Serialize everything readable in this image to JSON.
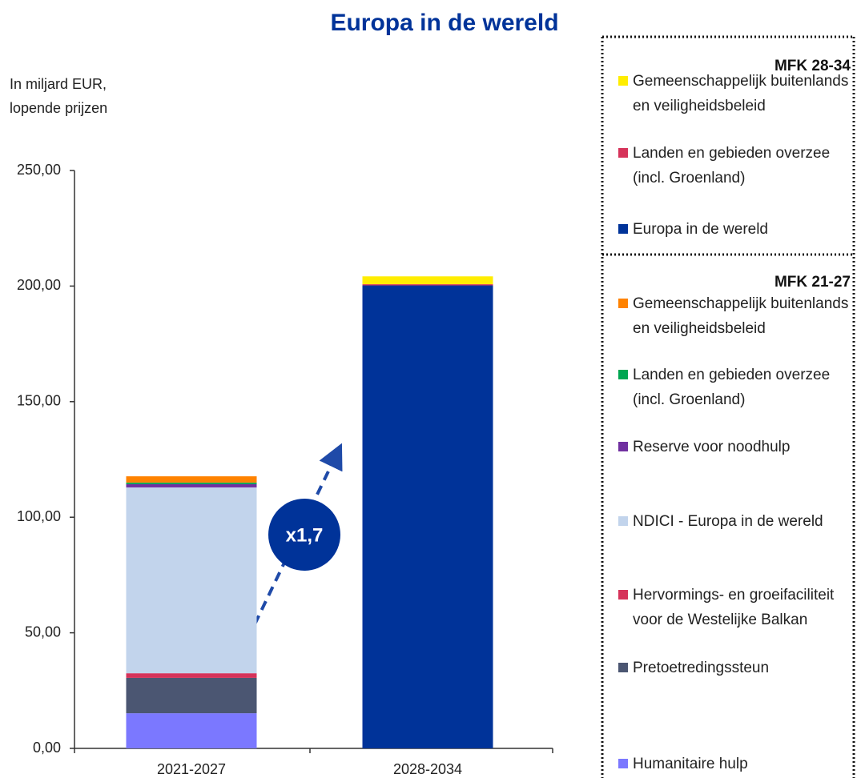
{
  "chart_data": {
    "type": "bar",
    "stacked": true,
    "title": "Europa in de wereld",
    "ylabel_lines": [
      "In miljard EUR,",
      "lopende prijzen"
    ],
    "categories": [
      "2021-2027",
      "2028-2034"
    ],
    "ylim": [
      0,
      250
    ],
    "yticks": [
      {
        "value": 0,
        "label": "0,00"
      },
      {
        "value": 50,
        "label": "50,00"
      },
      {
        "value": 100,
        "label": "100,00"
      },
      {
        "value": 150,
        "label": "150,00"
      },
      {
        "value": 200,
        "label": "200,00"
      },
      {
        "value": 250,
        "label": "250,00"
      }
    ],
    "annotation": "x1,7",
    "groups": [
      {
        "title": "MFK 28-34",
        "series": [
          {
            "name": "Gemeenschappelijk buitenlands en veiligheidsbeleid",
            "color": "#ffed00",
            "values": [
              null,
              3.4
            ]
          },
          {
            "name": "Landen en gebieden overzee (incl. Groenland)",
            "color": "#d6335a",
            "values": [
              null,
              0.5
            ]
          },
          {
            "name": "Europa in de wereld",
            "color": "#003399",
            "values": [
              null,
              200.3
            ]
          }
        ]
      },
      {
        "title": "MFK 21-27",
        "series": [
          {
            "name": "Gemeenschappelijk buitenlands en veiligheidsbeleid",
            "color": "#ff8200",
            "values": [
              2.7,
              null
            ]
          },
          {
            "name": "Landen en gebieden overzee (incl. Groenland)",
            "color": "#00a651",
            "values": [
              0.7,
              null
            ]
          },
          {
            "name": "Reserve voor noodhulp",
            "color": "#7030a0",
            "values": [
              1.4,
              null
            ]
          },
          {
            "name": "NDICI - Europa in de wereld",
            "color": "#c2d4ec",
            "values": [
              80.4,
              null
            ]
          },
          {
            "name": "Hervormings- en groeifaciliteit voor de Westelijke Balkan",
            "color": "#d6335a",
            "values": [
              2.0,
              null
            ]
          },
          {
            "name": "Pretoetredingssteun",
            "color": "#4b5672",
            "values": [
              15.3,
              null
            ]
          },
          {
            "name": "Humanitaire hulp",
            "color": "#7b78ff",
            "values": [
              15.2,
              null
            ]
          }
        ]
      }
    ]
  }
}
